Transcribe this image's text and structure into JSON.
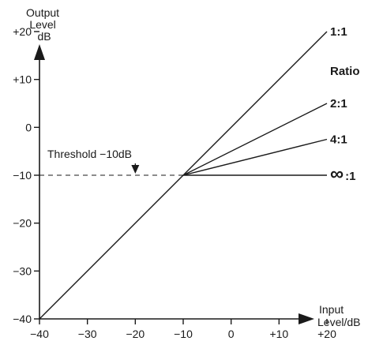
{
  "chart_data": {
    "type": "line",
    "x_axis": {
      "label_lines": [
        "Input",
        "Level/dB"
      ],
      "range": [
        -40,
        20
      ],
      "ticks": [
        -40,
        -30,
        -20,
        -10,
        0,
        10,
        20
      ],
      "tick_labels": [
        "−40",
        "−30",
        "−20",
        "−10",
        "0",
        "+10",
        "+20"
      ]
    },
    "y_axis": {
      "label_lines": [
        "Output",
        "Level",
        "dB"
      ],
      "range": [
        -40,
        20
      ],
      "ticks": [
        -40,
        -30,
        -20,
        -10,
        0,
        10,
        20
      ],
      "tick_labels": [
        "−40",
        "−30",
        "−20",
        "−10",
        "0",
        "+10",
        "+20"
      ]
    },
    "threshold": {
      "value": -10,
      "label": "Threshold −10dB"
    },
    "legend_title": "Ratio",
    "series": [
      {
        "name": "1:1",
        "points": [
          [
            -40,
            -40
          ],
          [
            -10,
            -10
          ],
          [
            20,
            20
          ]
        ]
      },
      {
        "name": "2:1",
        "points": [
          [
            -10,
            -10
          ],
          [
            20,
            5
          ]
        ]
      },
      {
        "name": "4:1",
        "points": [
          [
            -10,
            -10
          ],
          [
            20,
            -2.5
          ]
        ]
      },
      {
        "name": ":1",
        "name_prefix": "∞",
        "points": [
          [
            -10,
            -10
          ],
          [
            20,
            -10
          ]
        ]
      }
    ],
    "grid": false,
    "line_color": "#1a1a1a"
  }
}
